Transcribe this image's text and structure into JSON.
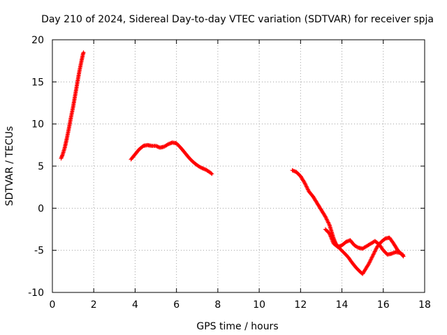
{
  "chart_data": {
    "type": "scatter",
    "title": "Day 210 of 2024, Sidereal Day-to-day VTEC variation (SDTVAR) for receiver spja",
    "xlabel": "GPS time / hours",
    "ylabel": "SDTVAR / TECUs",
    "xlim": [
      0,
      18
    ],
    "ylim": [
      -10,
      20
    ],
    "xticks": [
      0,
      2,
      4,
      6,
      8,
      10,
      12,
      14,
      16,
      18
    ],
    "yticks": [
      -10,
      -5,
      0,
      5,
      10,
      15,
      20
    ],
    "grid": true,
    "legend": "none",
    "series": [
      {
        "name": "SDTVAR",
        "color": "#ff0000",
        "marker": "plus",
        "segments": [
          [
            [
              0.42,
              5.9
            ],
            [
              0.5,
              6.4
            ],
            [
              0.6,
              7.2
            ],
            [
              0.7,
              8.3
            ],
            [
              0.8,
              9.5
            ],
            [
              0.9,
              10.8
            ],
            [
              1.0,
              12.0
            ],
            [
              1.1,
              13.4
            ],
            [
              1.2,
              14.8
            ],
            [
              1.3,
              16.2
            ],
            [
              1.4,
              17.4
            ],
            [
              1.48,
              18.3
            ],
            [
              1.52,
              18.6
            ]
          ],
          [
            [
              3.8,
              5.8
            ],
            [
              4.0,
              6.4
            ],
            [
              4.2,
              7.0
            ],
            [
              4.4,
              7.4
            ],
            [
              4.6,
              7.5
            ],
            [
              4.8,
              7.4
            ],
            [
              5.0,
              7.4
            ],
            [
              5.2,
              7.2
            ],
            [
              5.4,
              7.3
            ],
            [
              5.6,
              7.6
            ],
            [
              5.8,
              7.8
            ],
            [
              6.0,
              7.7
            ],
            [
              6.2,
              7.2
            ],
            [
              6.4,
              6.6
            ],
            [
              6.6,
              6.0
            ],
            [
              6.8,
              5.5
            ],
            [
              7.0,
              5.1
            ],
            [
              7.2,
              4.8
            ],
            [
              7.4,
              4.6
            ],
            [
              7.6,
              4.3
            ],
            [
              7.75,
              4.0
            ]
          ],
          [
            [
              11.6,
              4.5
            ],
            [
              11.8,
              4.3
            ],
            [
              12.0,
              3.8
            ],
            [
              12.2,
              3.0
            ],
            [
              12.4,
              2.0
            ],
            [
              12.6,
              1.4
            ],
            [
              12.8,
              0.6
            ],
            [
              13.0,
              -0.2
            ],
            [
              13.2,
              -1.0
            ],
            [
              13.4,
              -2.0
            ],
            [
              13.5,
              -2.8
            ],
            [
              13.6,
              -3.6
            ],
            [
              13.7,
              -4.2
            ],
            [
              13.9,
              -4.8
            ],
            [
              14.1,
              -5.3
            ],
            [
              14.3,
              -5.8
            ],
            [
              14.5,
              -6.5
            ],
            [
              14.7,
              -7.1
            ],
            [
              14.9,
              -7.6
            ],
            [
              15.0,
              -7.8
            ],
            [
              15.1,
              -7.4
            ],
            [
              15.3,
              -6.6
            ],
            [
              15.5,
              -5.6
            ],
            [
              15.7,
              -4.6
            ],
            [
              15.9,
              -4.0
            ],
            [
              16.1,
              -3.6
            ],
            [
              16.3,
              -3.5
            ],
            [
              16.5,
              -4.2
            ],
            [
              16.7,
              -5.0
            ],
            [
              16.9,
              -5.5
            ],
            [
              17.0,
              -5.8
            ]
          ],
          [
            [
              13.2,
              -2.5
            ],
            [
              13.4,
              -3.0
            ],
            [
              13.6,
              -4.2
            ],
            [
              13.8,
              -4.6
            ],
            [
              14.0,
              -4.4
            ],
            [
              14.2,
              -4.0
            ],
            [
              14.4,
              -3.8
            ],
            [
              14.6,
              -4.4
            ],
            [
              14.8,
              -4.7
            ],
            [
              15.0,
              -4.8
            ],
            [
              15.2,
              -4.5
            ],
            [
              15.4,
              -4.2
            ],
            [
              15.6,
              -3.9
            ],
            [
              15.8,
              -4.3
            ],
            [
              16.0,
              -5.0
            ],
            [
              16.2,
              -5.5
            ],
            [
              16.4,
              -5.4
            ],
            [
              16.6,
              -5.2
            ],
            [
              16.8,
              -5.3
            ],
            [
              17.0,
              -5.6
            ]
          ]
        ]
      }
    ]
  }
}
